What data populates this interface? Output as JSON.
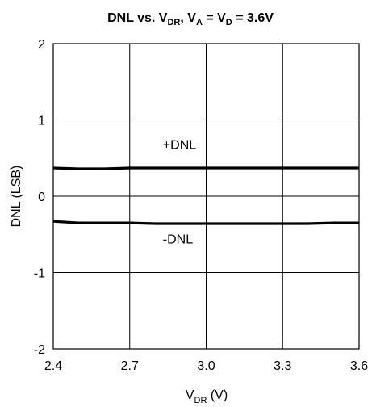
{
  "chart_data": {
    "type": "line",
    "title": {
      "main": "DNL vs. V",
      "sub1": "DR",
      "mid": ", V",
      "sub2": "A",
      "mid2": " = V",
      "sub3": "D",
      "tail": " = 3.6V"
    },
    "xlabel": {
      "main": "V",
      "sub": "DR",
      "tail": " (V)"
    },
    "ylabel": "DNL (LSB)",
    "xlim": [
      2.4,
      3.6
    ],
    "ylim": [
      -2,
      2
    ],
    "xticks": [
      "2.4",
      "2.7",
      "3.0",
      "3.3",
      "3.6"
    ],
    "yticks": [
      "2",
      "1",
      "0",
      "-1",
      "-2"
    ],
    "grid": true,
    "series": [
      {
        "name": "+DNL",
        "x": [
          2.4,
          2.5,
          2.6,
          2.7,
          2.8,
          2.9,
          3.0,
          3.1,
          3.2,
          3.3,
          3.4,
          3.5,
          3.6
        ],
        "y": [
          0.37,
          0.36,
          0.36,
          0.37,
          0.37,
          0.37,
          0.37,
          0.37,
          0.37,
          0.37,
          0.37,
          0.37,
          0.37
        ]
      },
      {
        "name": "-DNL",
        "x": [
          2.4,
          2.5,
          2.6,
          2.7,
          2.8,
          2.9,
          3.0,
          3.1,
          3.2,
          3.3,
          3.4,
          3.5,
          3.6
        ],
        "y": [
          -0.33,
          -0.35,
          -0.35,
          -0.35,
          -0.36,
          -0.36,
          -0.36,
          -0.36,
          -0.36,
          -0.36,
          -0.36,
          -0.35,
          -0.35
        ]
      }
    ],
    "annotations": [
      {
        "text": "+DNL",
        "x": 2.83,
        "y": 0.62
      },
      {
        "text": "-DNL",
        "x": 2.83,
        "y": -0.62
      }
    ],
    "line_color": "#000000",
    "grid_color": "#000000"
  }
}
